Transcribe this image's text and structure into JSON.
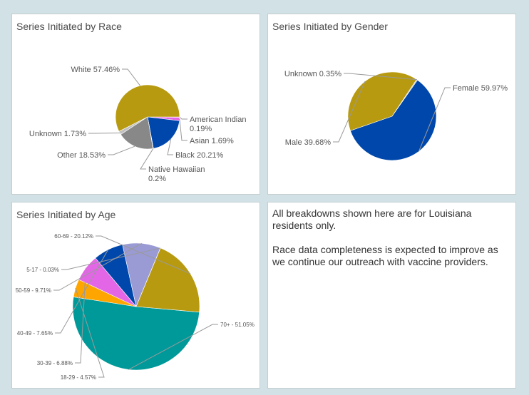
{
  "charts": {
    "race": {
      "title": "Series Initiated by Race"
    },
    "gender": {
      "title": "Series Initiated by Gender"
    },
    "age": {
      "title": "Series Initiated by Age"
    }
  },
  "note": {
    "paragraphs": [
      "All breakdowns shown here are for Louisiana residents only.",
      "Race data completeness is expected to improve as we continue our outreach with vaccine providers."
    ]
  },
  "chart_data": [
    {
      "id": "race",
      "type": "pie",
      "title": "Series Initiated by Race",
      "slices": [
        {
          "label": "American Indian 0.19%",
          "value": 0.19,
          "color": "#009999"
        },
        {
          "label": "Asian 1.69%",
          "value": 1.69,
          "color": "#e266e5"
        },
        {
          "label": "Black 20.21%",
          "value": 20.21,
          "color": "#0047ab"
        },
        {
          "label": "Native Hawaiian 0.2%",
          "value": 0.2,
          "color": "#ffa500"
        },
        {
          "label": "Other 18.53%",
          "value": 18.53,
          "color": "#888888"
        },
        {
          "label": "Unknown 1.73%",
          "value": 1.73,
          "color": "#c0c0c0"
        },
        {
          "label": "White 57.46%",
          "value": 57.46,
          "color": "#b89a10"
        }
      ]
    },
    {
      "id": "gender",
      "type": "pie",
      "title": "Series Initiated by Gender",
      "slices": [
        {
          "label": "Female 59.97%",
          "value": 59.97,
          "color": "#0047ab"
        },
        {
          "label": "Male 39.68%",
          "value": 39.68,
          "color": "#b89a10"
        },
        {
          "label": "Unknown 0.35%",
          "value": 0.35,
          "color": "#c0c0c0"
        }
      ]
    },
    {
      "id": "age",
      "type": "pie",
      "title": "Series Initiated by Age",
      "slices": [
        {
          "label": "70+ - 51.05%",
          "value": 51.05,
          "color": "#009999"
        },
        {
          "label": "18-29 - 4.57%",
          "value": 4.57,
          "color": "#ffa500"
        },
        {
          "label": "30-39 - 6.88%",
          "value": 6.88,
          "color": "#e266e5"
        },
        {
          "label": "40-49 - 7.65%",
          "value": 7.65,
          "color": "#0047ab"
        },
        {
          "label": "50-59 - 9.71%",
          "value": 9.71,
          "color": "#9a9ad4"
        },
        {
          "label": "5-17 - 0.03%",
          "value": 0.03,
          "color": "#c0c0c0"
        },
        {
          "label": "60-69 - 20.12%",
          "value": 20.12,
          "color": "#b89a10"
        }
      ]
    }
  ]
}
